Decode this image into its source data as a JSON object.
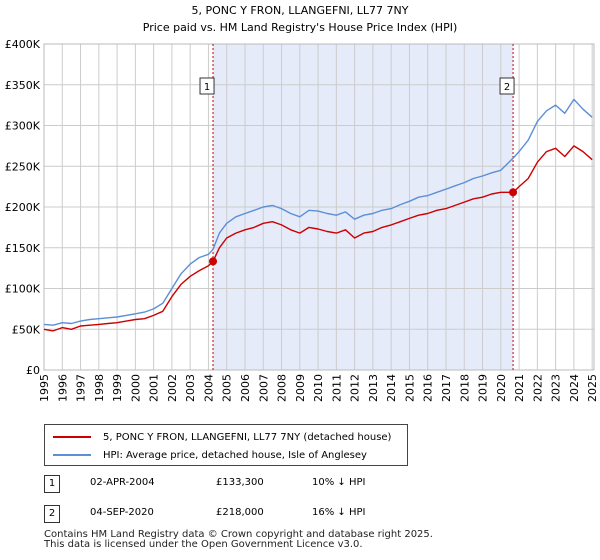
{
  "chart_data": {
    "type": "line",
    "title": "5, PONC Y FRON, LLANGEFNI, LL77 7NY",
    "subtitle": "Price paid vs. HM Land Registry's House Price Index (HPI)",
    "x_ticks": [
      "1995",
      "1996",
      "1997",
      "1998",
      "1999",
      "2000",
      "2001",
      "2002",
      "2003",
      "2004",
      "2005",
      "2006",
      "2007",
      "2008",
      "2009",
      "2010",
      "2011",
      "2012",
      "2013",
      "2014",
      "2015",
      "2016",
      "2017",
      "2018",
      "2019",
      "2020",
      "2021",
      "2022",
      "2023",
      "2024",
      "2025"
    ],
    "xlim": [
      1995,
      2025.1
    ],
    "y_ticks": [
      "£0",
      "£50K",
      "£100K",
      "£150K",
      "£200K",
      "£250K",
      "£300K",
      "£350K",
      "£400K"
    ],
    "ylim": [
      0,
      400000
    ],
    "shade_range": [
      2004.25,
      2020.67
    ],
    "series": [
      {
        "name": "5, PONC Y FRON, LLANGEFNI, LL77 7NY (detached house)",
        "color": "#cc0000",
        "x": [
          1995.0,
          1995.5,
          1996.0,
          1996.5,
          1997.0,
          1997.5,
          1998.0,
          1998.5,
          1999.0,
          1999.5,
          2000.0,
          2000.5,
          2001.0,
          2001.5,
          2002.0,
          2002.5,
          2003.0,
          2003.5,
          2004.0,
          2004.25,
          2004.6,
          2005.0,
          2005.5,
          2006.0,
          2006.5,
          2007.0,
          2007.5,
          2008.0,
          2008.5,
          2009.0,
          2009.5,
          2010.0,
          2010.5,
          2011.0,
          2011.5,
          2012.0,
          2012.5,
          2013.0,
          2013.5,
          2014.0,
          2014.5,
          2015.0,
          2015.5,
          2016.0,
          2016.5,
          2017.0,
          2017.5,
          2018.0,
          2018.5,
          2019.0,
          2019.5,
          2020.0,
          2020.67,
          2021.0,
          2021.5,
          2022.0,
          2022.5,
          2023.0,
          2023.5,
          2024.0,
          2024.5,
          2025.0
        ],
        "values": [
          50000,
          48000,
          52000,
          50000,
          54000,
          55000,
          56000,
          57000,
          58000,
          60000,
          62000,
          63000,
          67000,
          72000,
          90000,
          105000,
          115000,
          122000,
          128000,
          133300,
          150000,
          162000,
          168000,
          172000,
          175000,
          180000,
          182000,
          178000,
          172000,
          168000,
          175000,
          173000,
          170000,
          168000,
          172000,
          162000,
          168000,
          170000,
          175000,
          178000,
          182000,
          186000,
          190000,
          192000,
          196000,
          198000,
          202000,
          206000,
          210000,
          212000,
          216000,
          218000,
          218000,
          225000,
          235000,
          255000,
          268000,
          272000,
          262000,
          275000,
          268000,
          258000
        ]
      },
      {
        "name": "HPI: Average price, detached house, Isle of Anglesey",
        "color": "#5b8fd6",
        "x": [
          1995.0,
          1995.5,
          1996.0,
          1996.5,
          1997.0,
          1997.5,
          1998.0,
          1998.5,
          1999.0,
          1999.5,
          2000.0,
          2000.5,
          2001.0,
          2001.5,
          2002.0,
          2002.5,
          2003.0,
          2003.5,
          2004.0,
          2004.25,
          2004.6,
          2005.0,
          2005.5,
          2006.0,
          2006.5,
          2007.0,
          2007.5,
          2008.0,
          2008.5,
          2009.0,
          2009.5,
          2010.0,
          2010.5,
          2011.0,
          2011.5,
          2012.0,
          2012.5,
          2013.0,
          2013.5,
          2014.0,
          2014.5,
          2015.0,
          2015.5,
          2016.0,
          2016.5,
          2017.0,
          2017.5,
          2018.0,
          2018.5,
          2019.0,
          2019.5,
          2020.0,
          2020.67,
          2021.0,
          2021.5,
          2022.0,
          2022.5,
          2023.0,
          2023.5,
          2024.0,
          2024.5,
          2025.0
        ],
        "values": [
          56000,
          55000,
          58000,
          57000,
          60000,
          62000,
          63000,
          64000,
          65000,
          67000,
          69000,
          71000,
          75000,
          82000,
          100000,
          118000,
          130000,
          138000,
          142000,
          148000,
          168000,
          180000,
          188000,
          192000,
          196000,
          200000,
          202000,
          198000,
          192000,
          188000,
          196000,
          195000,
          192000,
          190000,
          194000,
          185000,
          190000,
          192000,
          196000,
          198000,
          203000,
          207000,
          212000,
          214000,
          218000,
          222000,
          226000,
          230000,
          235000,
          238000,
          242000,
          245000,
          260000,
          268000,
          282000,
          305000,
          318000,
          325000,
          315000,
          332000,
          320000,
          310000
        ]
      }
    ],
    "transactions": [
      {
        "label": "1",
        "x": 2004.25,
        "value": 133300,
        "date": "02-APR-2004",
        "price": "£133,300",
        "hpi": "10% ↓ HPI"
      },
      {
        "label": "2",
        "x": 2020.67,
        "value": 218000,
        "date": "04-SEP-2020",
        "price": "£218,000",
        "hpi": "16% ↓ HPI"
      }
    ]
  },
  "footer": {
    "line1": "Contains HM Land Registry data © Crown copyright and database right 2025.",
    "line2": "This data is licensed under the Open Government Licence v3.0."
  },
  "colors": {
    "red": "#cc0000",
    "blue": "#5b8fd6",
    "shade": "#e6ebfa",
    "grid": "#cccccc"
  }
}
